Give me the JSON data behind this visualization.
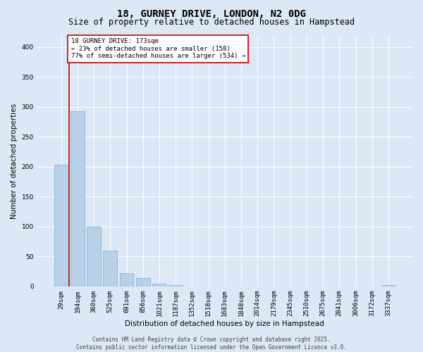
{
  "title": "18, GURNEY DRIVE, LONDON, N2 0DG",
  "subtitle": "Size of property relative to detached houses in Hampstead",
  "xlabel": "Distribution of detached houses by size in Hampstead",
  "ylabel": "Number of detached properties",
  "categories": [
    "29sqm",
    "194sqm",
    "360sqm",
    "525sqm",
    "691sqm",
    "856sqm",
    "1021sqm",
    "1187sqm",
    "1352sqm",
    "1518sqm",
    "1683sqm",
    "1848sqm",
    "2014sqm",
    "2179sqm",
    "2345sqm",
    "2510sqm",
    "2675sqm",
    "2841sqm",
    "3006sqm",
    "3172sqm",
    "3337sqm"
  ],
  "values": [
    203,
    293,
    100,
    60,
    22,
    14,
    5,
    2,
    0,
    0,
    0,
    0,
    0,
    0,
    0,
    0,
    0,
    0,
    0,
    0,
    2
  ],
  "bar_color": "#b8d0e8",
  "bar_edge_color": "#7aafd4",
  "vline_color": "#cc0000",
  "annotation_text": "18 GURNEY DRIVE: 173sqm\n← 23% of detached houses are smaller (158)\n77% of semi-detached houses are larger (534) →",
  "annotation_box_color": "#ffffff",
  "annotation_box_edge_color": "#cc0000",
  "ylim": [
    0,
    420
  ],
  "yticks": [
    0,
    50,
    100,
    150,
    200,
    250,
    300,
    350,
    400
  ],
  "bg_color": "#dce8f5",
  "plot_bg_color": "#dce8f5",
  "footer_text": "Contains HM Land Registry data © Crown copyright and database right 2025.\nContains public sector information licensed under the Open Government Licence v3.0.",
  "title_fontsize": 10,
  "subtitle_fontsize": 8.5,
  "label_fontsize": 7.5,
  "tick_fontsize": 6.5,
  "footer_fontsize": 5.5
}
